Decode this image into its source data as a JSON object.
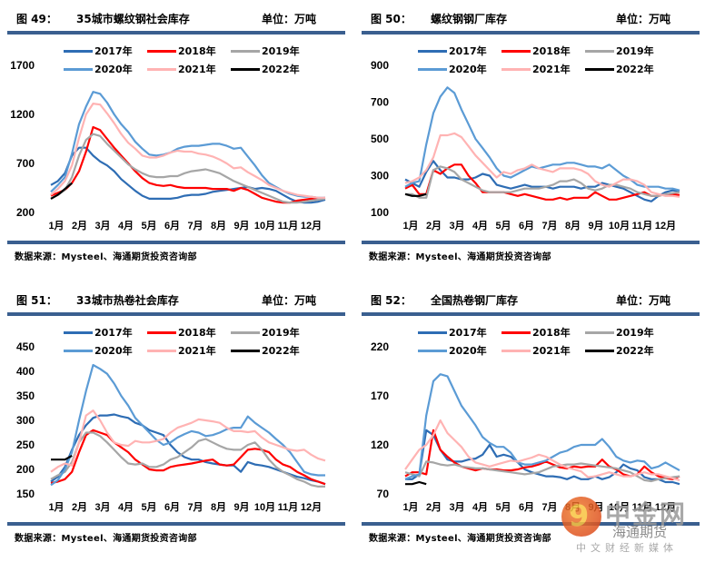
{
  "source_text": "数据来源：Mysteel、海通期货投资咨询部",
  "unit_text": "单位：万吨",
  "legend": [
    {
      "name": "2017年",
      "color": "#2e6db4"
    },
    {
      "name": "2018年",
      "color": "#ff0000"
    },
    {
      "name": "2019年",
      "color": "#a6a6a6"
    },
    {
      "name": "2020年",
      "color": "#5b9bd5"
    },
    {
      "name": "2021年",
      "color": "#ffb3b3"
    },
    {
      "name": "2022年",
      "color": "#000000"
    }
  ],
  "watermark": {
    "big": "中金网",
    "mid": "海通期货",
    "small": "中文财经新媒体"
  },
  "chart_data": [
    {
      "type": "line",
      "fig_no": "图 49：",
      "title": "35城市螺纹钢社会库存",
      "unit": "单位：万吨",
      "xlabel": "",
      "ylabel": "",
      "categories": [
        "1月",
        "2月",
        "3月",
        "4月",
        "5月",
        "6月",
        "7月",
        "8月",
        "9月",
        "10月",
        "11月",
        "12月"
      ],
      "yticks": [
        200,
        700,
        1200,
        1700
      ],
      "ylim": [
        200,
        1700
      ],
      "legend_position": "top",
      "series": [
        {
          "name": "2017年",
          "values": [
            480,
            520,
            600,
            780,
            860,
            860,
            780,
            720,
            680,
            620,
            540,
            480,
            420,
            370,
            340,
            340,
            340,
            340,
            350,
            370,
            380,
            380,
            390,
            410,
            420,
            430,
            440,
            450,
            460,
            440,
            450,
            440,
            420,
            380,
            340,
            310,
            300,
            300,
            310,
            330
          ]
        },
        {
          "name": "2018年",
          "values": [
            370,
            400,
            430,
            500,
            620,
            820,
            1070,
            1040,
            950,
            860,
            780,
            700,
            620,
            550,
            500,
            480,
            470,
            480,
            460,
            450,
            450,
            450,
            450,
            440,
            440,
            440,
            420,
            450,
            430,
            390,
            350,
            330,
            310,
            300,
            300,
            320,
            330,
            340,
            340,
            350
          ]
        },
        {
          "name": "2019年",
          "values": [
            340,
            380,
            430,
            560,
            780,
            940,
            1000,
            980,
            900,
            830,
            760,
            690,
            640,
            600,
            570,
            560,
            560,
            570,
            570,
            600,
            620,
            630,
            640,
            620,
            600,
            560,
            520,
            490,
            460,
            430,
            400,
            370,
            340,
            310,
            300,
            300,
            310,
            320,
            330,
            340
          ]
        },
        {
          "name": "2020年",
          "values": [
            410,
            480,
            560,
            800,
            1100,
            1280,
            1430,
            1410,
            1320,
            1200,
            1100,
            1020,
            920,
            850,
            790,
            780,
            790,
            810,
            850,
            870,
            880,
            880,
            890,
            900,
            900,
            880,
            850,
            860,
            770,
            680,
            580,
            500,
            460,
            420,
            390,
            370,
            360,
            360,
            350,
            350
          ]
        },
        {
          "name": "2021年",
          "values": [
            380,
            440,
            520,
            680,
            960,
            1200,
            1310,
            1300,
            1210,
            1110,
            1000,
            910,
            850,
            780,
            760,
            760,
            780,
            810,
            830,
            820,
            820,
            800,
            790,
            770,
            740,
            700,
            650,
            660,
            610,
            570,
            530,
            480,
            450,
            420,
            400,
            380,
            370,
            360,
            350,
            350
          ]
        },
        {
          "name": "2022年",
          "values": [
            340,
            380,
            440,
            500
          ]
        }
      ]
    },
    {
      "type": "line",
      "fig_no": "图 50：",
      "title": "螺纹钢钢厂库存",
      "unit": "单位：万吨",
      "xlabel": "",
      "ylabel": "",
      "categories": [
        "1月",
        "2月",
        "3月",
        "4月",
        "5月",
        "6月",
        "7月",
        "8月",
        "9月",
        "10月",
        "11月",
        "12月"
      ],
      "yticks": [
        100,
        300,
        500,
        700,
        900
      ],
      "ylim": [
        100,
        900
      ],
      "legend_position": "top",
      "series": [
        {
          "name": "2017年",
          "values": [
            280,
            260,
            240,
            320,
            380,
            330,
            290,
            290,
            280,
            280,
            290,
            310,
            300,
            250,
            240,
            230,
            240,
            250,
            240,
            240,
            240,
            230,
            240,
            240,
            240,
            230,
            240,
            240,
            260,
            250,
            240,
            230,
            210,
            190,
            170,
            160,
            190,
            210,
            220,
            215
          ]
        },
        {
          "name": "2018年",
          "values": [
            230,
            250,
            200,
            200,
            330,
            310,
            340,
            360,
            360,
            300,
            260,
            210,
            210,
            210,
            210,
            200,
            190,
            200,
            190,
            180,
            170,
            170,
            180,
            170,
            180,
            180,
            180,
            210,
            190,
            170,
            170,
            180,
            190,
            200,
            210,
            190,
            190,
            200,
            200,
            195
          ]
        },
        {
          "name": "2019年",
          "values": [
            200,
            200,
            180,
            180,
            330,
            350,
            340,
            320,
            280,
            260,
            240,
            220,
            210,
            210,
            210,
            210,
            220,
            230,
            230,
            230,
            240,
            250,
            270,
            270,
            280,
            260,
            230,
            220,
            230,
            250,
            250,
            240,
            230,
            210,
            200,
            190,
            190,
            200,
            205,
            210
          ]
        },
        {
          "name": "2020年",
          "values": [
            240,
            260,
            270,
            470,
            640,
            730,
            780,
            750,
            660,
            580,
            500,
            450,
            400,
            340,
            300,
            290,
            310,
            330,
            350,
            340,
            350,
            360,
            360,
            370,
            370,
            360,
            350,
            350,
            340,
            360,
            330,
            300,
            280,
            250,
            240,
            240,
            240,
            230,
            230,
            220
          ]
        },
        {
          "name": "2021年",
          "values": [
            260,
            270,
            290,
            330,
            400,
            520,
            520,
            530,
            510,
            460,
            410,
            370,
            330,
            290,
            320,
            310,
            330,
            340,
            360,
            340,
            330,
            320,
            340,
            340,
            340,
            330,
            310,
            270,
            250,
            240,
            260,
            280,
            280,
            270,
            250,
            210,
            200,
            190,
            190,
            185
          ]
        },
        {
          "name": "2022年",
          "values": [
            200,
            190,
            190,
            200
          ]
        }
      ]
    },
    {
      "type": "line",
      "fig_no": "图 51：",
      "title": "33城市热卷社会库存",
      "unit": "单位：万吨",
      "xlabel": "",
      "ylabel": "",
      "categories": [
        "1月",
        "2月",
        "3月",
        "4月",
        "5月",
        "6月",
        "7月",
        "8月",
        "9月",
        "10月",
        "11月",
        "12月"
      ],
      "yticks": [
        150,
        200,
        250,
        300,
        350,
        400,
        450
      ],
      "ylim": [
        150,
        450
      ],
      "legend_position": "top",
      "series": [
        {
          "name": "2017年",
          "values": [
            175,
            185,
            205,
            240,
            270,
            290,
            305,
            310,
            310,
            312,
            308,
            305,
            295,
            290,
            280,
            275,
            270,
            250,
            235,
            225,
            220,
            220,
            215,
            212,
            210,
            208,
            208,
            195,
            215,
            210,
            208,
            205,
            200,
            195,
            190,
            185,
            182,
            178,
            175,
            170
          ]
        },
        {
          "name": "2018年",
          "values": [
            172,
            175,
            180,
            195,
            235,
            270,
            280,
            275,
            270,
            255,
            245,
            235,
            220,
            210,
            200,
            198,
            198,
            205,
            208,
            210,
            212,
            215,
            218,
            220,
            210,
            208,
            210,
            225,
            240,
            242,
            240,
            235,
            220,
            210,
            205,
            195,
            188,
            180,
            175,
            170
          ]
        },
        {
          "name": "2019年",
          "values": [
            180,
            188,
            195,
            215,
            255,
            275,
            275,
            268,
            255,
            240,
            225,
            212,
            210,
            212,
            205,
            205,
            210,
            220,
            225,
            235,
            245,
            258,
            262,
            255,
            248,
            242,
            240,
            240,
            250,
            255,
            240,
            220,
            205,
            195,
            188,
            180,
            175,
            168,
            165,
            165
          ]
        },
        {
          "name": "2020年",
          "values": [
            168,
            178,
            200,
            235,
            300,
            360,
            413,
            405,
            395,
            375,
            350,
            330,
            305,
            290,
            275,
            260,
            250,
            255,
            265,
            272,
            278,
            275,
            268,
            270,
            275,
            282,
            285,
            285,
            308,
            295,
            285,
            275,
            262,
            250,
            235,
            215,
            195,
            190,
            188,
            188
          ]
        },
        {
          "name": "2021年",
          "values": [
            195,
            205,
            212,
            208,
            255,
            310,
            320,
            300,
            275,
            255,
            250,
            248,
            258,
            255,
            255,
            258,
            262,
            275,
            285,
            290,
            295,
            302,
            300,
            298,
            295,
            285,
            278,
            278,
            276,
            278,
            265,
            255,
            250,
            245,
            240,
            238,
            240,
            230,
            222,
            218
          ]
        },
        {
          "name": "2022年",
          "values": [
            220,
            220,
            220,
            228
          ]
        }
      ]
    },
    {
      "type": "line",
      "fig_no": "图 52：",
      "title": "全国热卷钢厂库存",
      "unit": "单位：万吨",
      "xlabel": "",
      "ylabel": "",
      "categories": [
        "1月",
        "2月",
        "3月",
        "4月",
        "5月",
        "6月",
        "7月",
        "8月",
        "9月",
        "10月",
        "11月",
        "12月"
      ],
      "yticks": [
        70,
        120,
        170,
        220
      ],
      "ylim": [
        70,
        220
      ],
      "legend_position": "top",
      "series": [
        {
          "name": "2017年",
          "values": [
            85,
            85,
            90,
            135,
            130,
            115,
            105,
            103,
            103,
            105,
            106,
            110,
            120,
            108,
            110,
            108,
            102,
            95,
            92,
            90,
            88,
            88,
            87,
            85,
            88,
            85,
            85,
            88,
            85,
            87,
            92,
            100,
            96,
            94,
            87,
            85,
            85,
            82,
            82,
            80
          ]
        },
        {
          "name": "2018年",
          "values": [
            88,
            92,
            92,
            90,
            135,
            115,
            108,
            102,
            98,
            96,
            94,
            96,
            95,
            95,
            94,
            94,
            95,
            97,
            98,
            100,
            103,
            100,
            97,
            96,
            98,
            97,
            98,
            98,
            105,
            98,
            95,
            90,
            88,
            90,
            98,
            92,
            88,
            86,
            85,
            88
          ]
        },
        {
          "name": "2019年",
          "values": [
            92,
            90,
            88,
            103,
            102,
            100,
            99,
            100,
            98,
            97,
            96,
            96,
            95,
            94,
            93,
            92,
            91,
            90,
            91,
            92,
            95,
            98,
            99,
            100,
            100,
            101,
            100,
            99,
            98,
            97,
            96,
            94,
            92,
            88,
            84,
            83,
            85,
            86,
            87,
            88
          ]
        },
        {
          "name": "2020年",
          "values": [
            85,
            88,
            90,
            150,
            185,
            192,
            190,
            175,
            160,
            150,
            140,
            128,
            122,
            118,
            118,
            112,
            102,
            100,
            100,
            102,
            104,
            108,
            112,
            114,
            118,
            120,
            120,
            120,
            126,
            118,
            108,
            104,
            102,
            104,
            103,
            96,
            98,
            102,
            98,
            94
          ]
        },
        {
          "name": "2021年",
          "values": [
            95,
            105,
            115,
            120,
            130,
            145,
            132,
            125,
            118,
            108,
            102,
            100,
            98,
            100,
            102,
            104,
            103,
            105,
            107,
            110,
            108,
            104,
            100,
            97,
            95,
            93,
            87,
            88,
            90,
            92,
            90,
            88,
            88,
            90,
            92,
            90,
            90,
            88,
            86,
            84
          ]
        },
        {
          "name": "2022年",
          "values": [
            80,
            80,
            82,
            80
          ]
        }
      ]
    }
  ]
}
